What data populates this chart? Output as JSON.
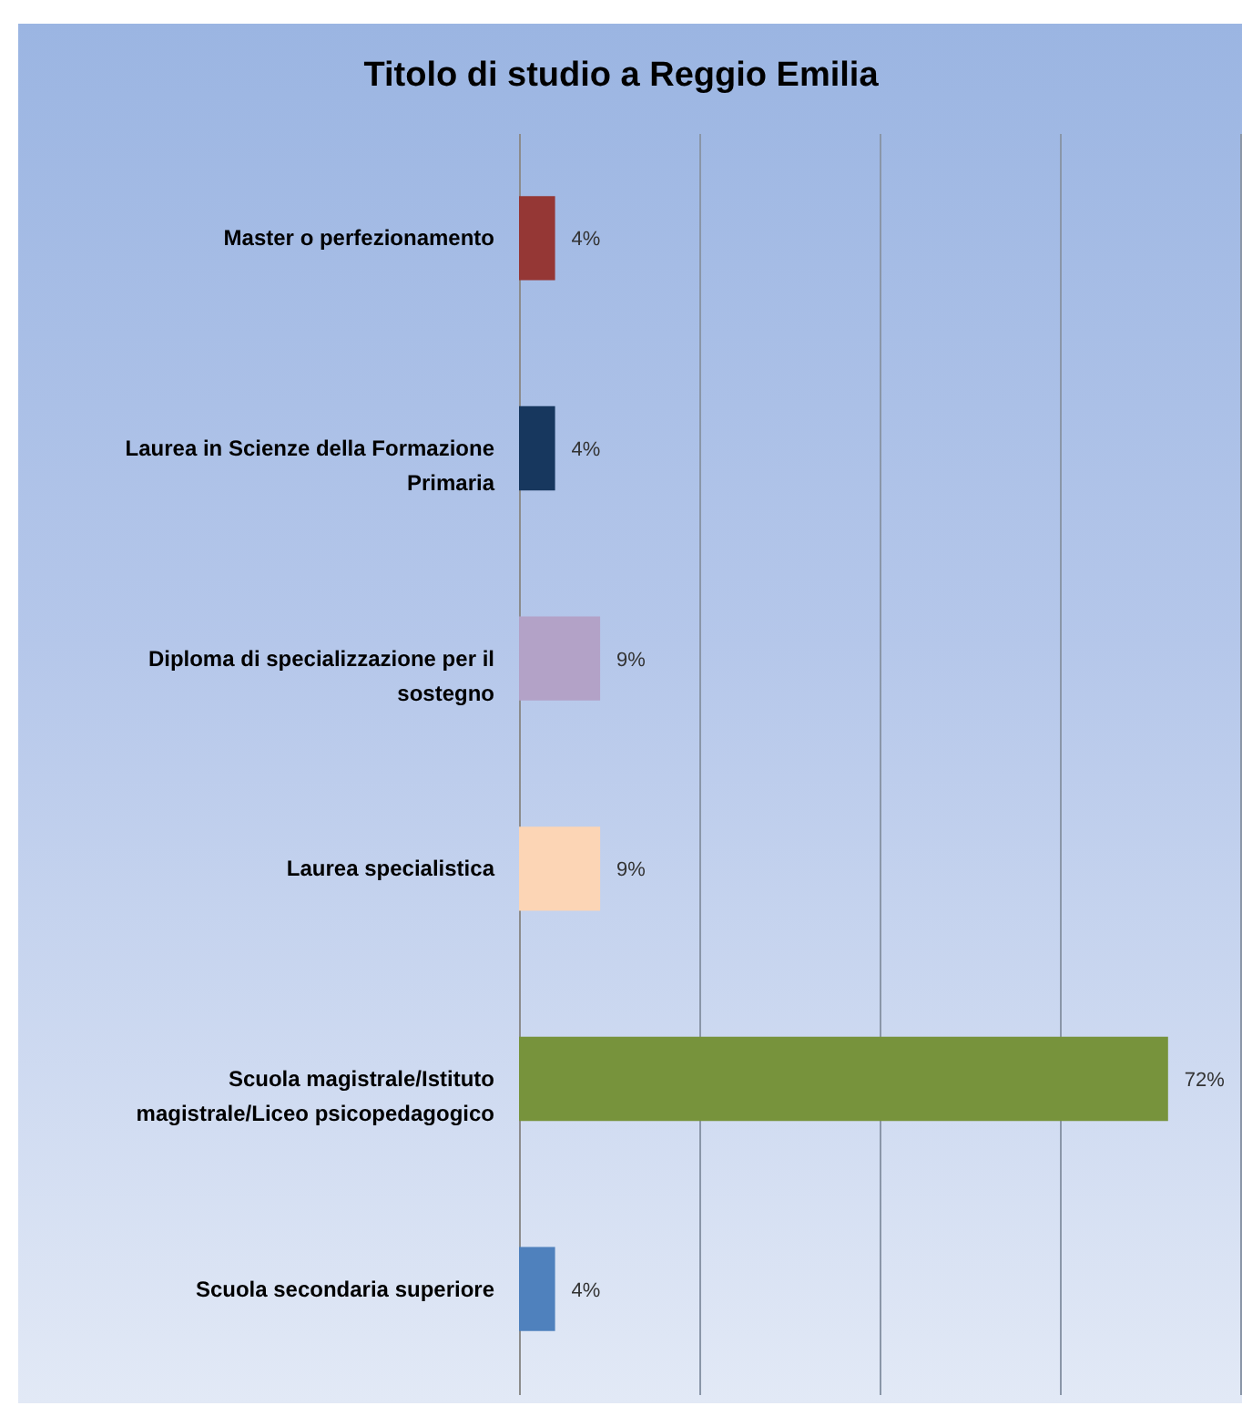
{
  "chart_data": {
    "type": "bar",
    "orientation": "horizontal",
    "title": "Titolo di studio a Reggio Emilia",
    "categories": [
      "Master o perfezionamento",
      "Laurea in Scienze della Formazione Primaria",
      "Diploma di specializzazione per il sostegno",
      "Laurea specialistica",
      "Scuola magistrale/Istituto magistrale/Liceo psicopedagogico",
      "Scuola secondaria superiore"
    ],
    "values": [
      4,
      4,
      9,
      9,
      72,
      4
    ],
    "colors": [
      "#953735",
      "#17375e",
      "#b3a2c7",
      "#fcd5b5",
      "#77933c",
      "#4f81bd"
    ],
    "value_labels": [
      "4%",
      "4%",
      "9%",
      "9%",
      "72%",
      "4%"
    ],
    "xlim": [
      0,
      80
    ],
    "xticks": [
      {
        "value": 0,
        "label": null
      },
      {
        "value": 20,
        "label": null
      },
      {
        "value": 40,
        "label": null
      },
      {
        "value": 60,
        "label": null
      },
      {
        "value": 80,
        "label": null
      }
    ],
    "grid": "x",
    "tick_labels": "y"
  }
}
